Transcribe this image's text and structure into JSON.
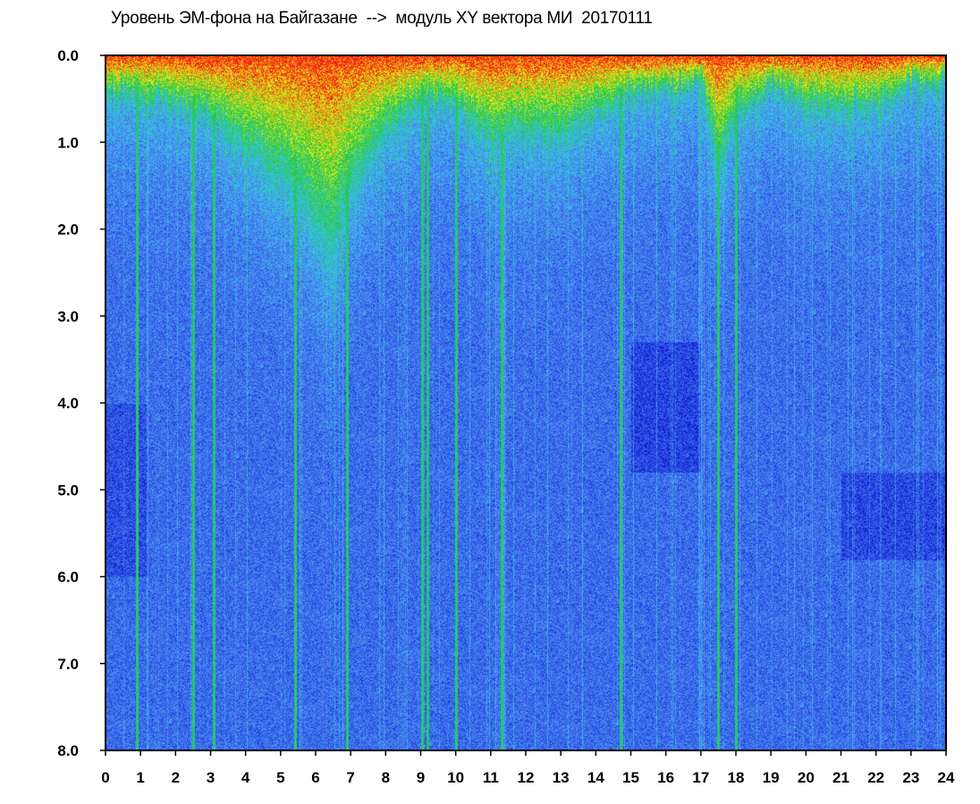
{
  "chart_data": {
    "type": "heatmap",
    "title": "Уровень ЭМ-фона на Байгазане  -->  модуль XY вектора МИ  20170111",
    "x_ticks": [
      "0",
      "1",
      "2",
      "3",
      "4",
      "5",
      "6",
      "7",
      "8",
      "9",
      "10",
      "11",
      "12",
      "13",
      "14",
      "15",
      "16",
      "17",
      "18",
      "19",
      "20",
      "21",
      "22",
      "23",
      "24"
    ],
    "y_ticks": [
      "0.0",
      "1.0",
      "2.0",
      "3.0",
      "4.0",
      "5.0",
      "6.0",
      "7.0",
      "8.0"
    ],
    "xlim": [
      0,
      24
    ],
    "ylim": [
      0,
      8
    ],
    "y_inverted": true,
    "grid": false,
    "colormap": [
      "#0a14c8",
      "#2a50e6",
      "#4f86ee",
      "#35c8ee",
      "#22c832",
      "#f2ee1c",
      "#f21a10"
    ],
    "activity_profile": [
      {
        "hour": 0.0,
        "depth": 0.5
      },
      {
        "hour": 1.0,
        "depth": 0.6
      },
      {
        "hour": 2.0,
        "depth": 0.7
      },
      {
        "hour": 3.0,
        "depth": 0.8
      },
      {
        "hour": 4.0,
        "depth": 1.3
      },
      {
        "hour": 5.0,
        "depth": 1.6
      },
      {
        "hour": 6.0,
        "depth": 2.2
      },
      {
        "hour": 6.5,
        "depth": 2.6
      },
      {
        "hour": 7.0,
        "depth": 1.8
      },
      {
        "hour": 8.0,
        "depth": 1.0
      },
      {
        "hour": 9.0,
        "depth": 0.6
      },
      {
        "hour": 10.0,
        "depth": 0.7
      },
      {
        "hour": 11.0,
        "depth": 1.2
      },
      {
        "hour": 12.0,
        "depth": 1.0
      },
      {
        "hour": 13.0,
        "depth": 1.1
      },
      {
        "hour": 14.0,
        "depth": 0.8
      },
      {
        "hour": 15.0,
        "depth": 0.5
      },
      {
        "hour": 16.0,
        "depth": 0.5
      },
      {
        "hour": 17.0,
        "depth": 0.4
      },
      {
        "hour": 17.5,
        "depth": 1.5
      },
      {
        "hour": 18.0,
        "depth": 0.8
      },
      {
        "hour": 19.0,
        "depth": 0.4
      },
      {
        "hour": 20.0,
        "depth": 0.7
      },
      {
        "hour": 21.0,
        "depth": 0.7
      },
      {
        "hour": 22.0,
        "depth": 0.7
      },
      {
        "hour": 23.0,
        "depth": 0.4
      },
      {
        "hour": 24.0,
        "depth": 0.4
      }
    ],
    "bright_lines_hours": [
      0.9,
      2.5,
      3.1,
      5.4,
      6.9,
      9.05,
      9.2,
      10.0,
      11.3,
      14.7,
      17.5,
      18.0
    ]
  }
}
